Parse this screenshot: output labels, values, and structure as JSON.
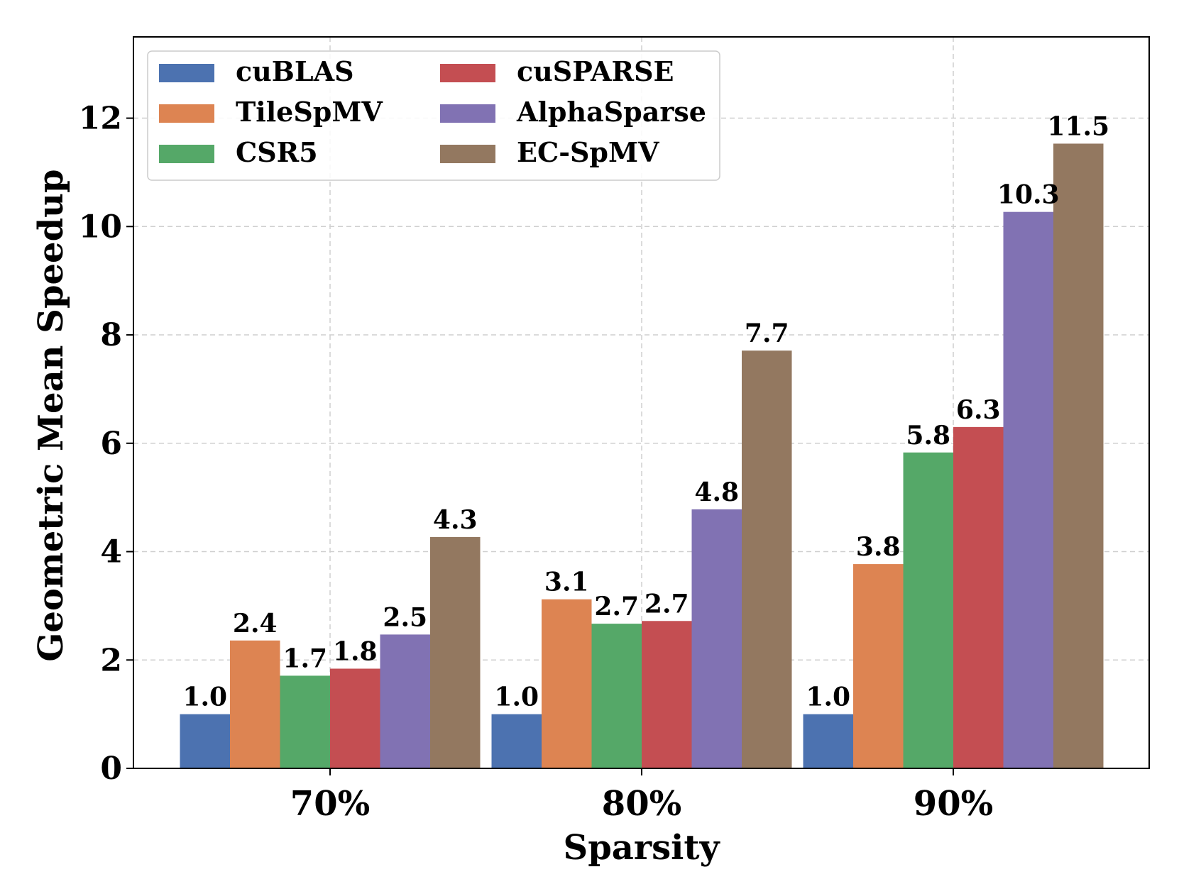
{
  "chart_data": {
    "type": "bar",
    "xlabel": "Sparsity",
    "ylabel": "Geometric Mean Speedup",
    "categories": [
      "70%",
      "80%",
      "90%"
    ],
    "ylim": [
      0,
      13.5
    ],
    "yticks": [
      0,
      2,
      4,
      6,
      8,
      10,
      12
    ],
    "grid": true,
    "legend_position": "top-left",
    "series": [
      {
        "name": "cuBLAS",
        "color": "#4c72b0",
        "values": [
          1.0,
          1.0,
          1.0
        ],
        "labels": [
          "1.0",
          "1.0",
          "1.0"
        ]
      },
      {
        "name": "TileSpMV",
        "color": "#dd8452",
        "values": [
          2.36,
          3.12,
          3.77
        ],
        "labels": [
          "2.4",
          "3.1",
          "3.8"
        ]
      },
      {
        "name": "CSR5",
        "color": "#55a868",
        "values": [
          1.71,
          2.67,
          5.83
        ],
        "labels": [
          "1.7",
          "2.7",
          "5.8"
        ]
      },
      {
        "name": "cuSPARSE",
        "color": "#c44e52",
        "values": [
          1.84,
          2.72,
          6.3
        ],
        "labels": [
          "1.8",
          "2.7",
          "6.3"
        ]
      },
      {
        "name": "AlphaSparse",
        "color": "#8172b3",
        "values": [
          2.47,
          4.78,
          10.27
        ],
        "labels": [
          "2.5",
          "4.8",
          "10.3"
        ]
      },
      {
        "name": "EC-SpMV",
        "color": "#937860",
        "values": [
          4.27,
          7.71,
          11.53
        ],
        "labels": [
          "4.3",
          "7.7",
          "11.5"
        ]
      }
    ]
  }
}
